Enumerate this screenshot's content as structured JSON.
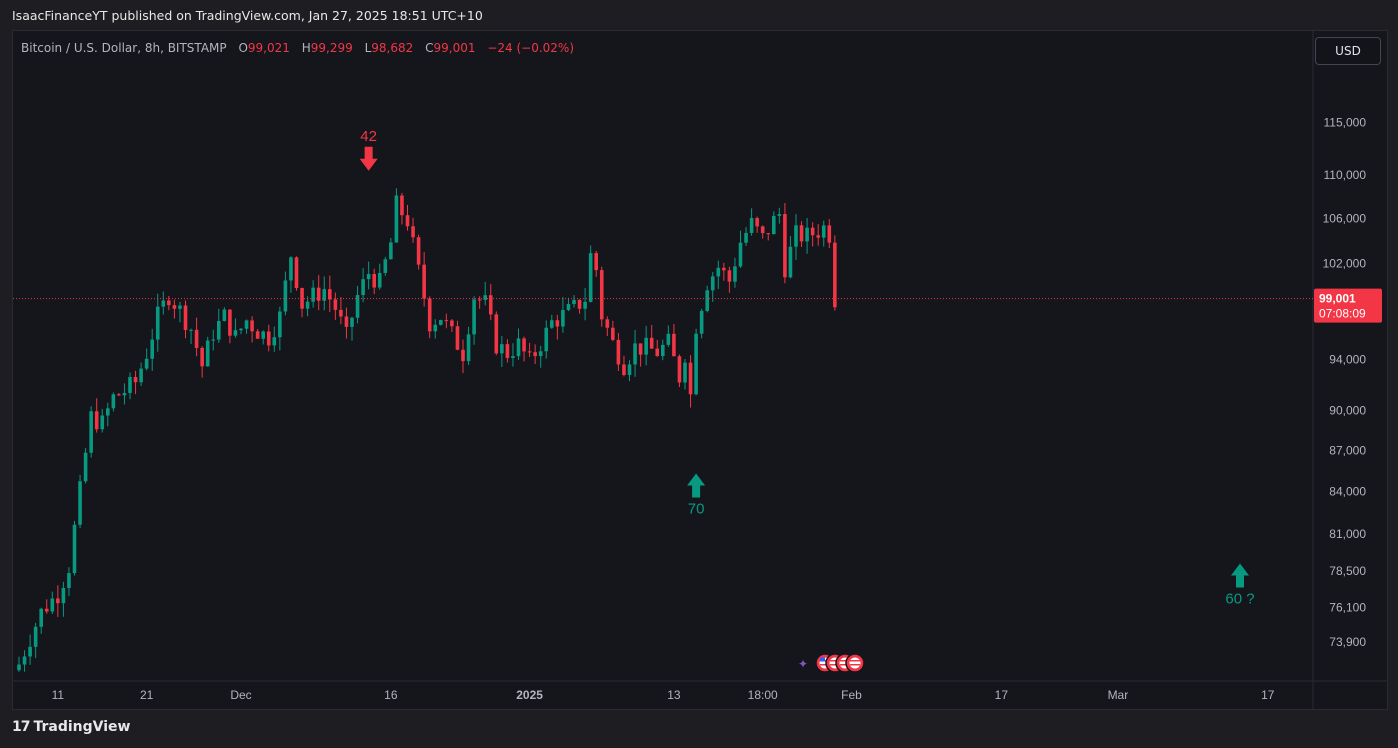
{
  "header": {
    "published_by": "IsaacFinanceYT published on TradingView.com, Jan 27, 2025 18:51 UTC+10"
  },
  "symbol": {
    "name": "Bitcoin / U.S. Dollar, 8h, BITSTAMP",
    "o_label": "O",
    "o": "99,021",
    "h_label": "H",
    "h": "99,299",
    "l_label": "L",
    "l": "98,682",
    "c_label": "C",
    "c": "99,001",
    "change": "−24 (−0.02%)"
  },
  "currency_button": "USD",
  "price_tag": {
    "price": "99,001",
    "countdown": "07:08:09"
  },
  "annotations": [
    {
      "label": "42",
      "direction": "down",
      "color": "#f23645",
      "x_index": 63,
      "price": 110200
    },
    {
      "label": "70",
      "direction": "up",
      "color": "#089981",
      "x_index": 122,
      "price": 85300
    },
    {
      "label": "60 ?",
      "direction": "up",
      "color": "#089981",
      "x_index": 220,
      "price": 79000
    }
  ],
  "footer": {
    "logo": "17",
    "brand": "TradingView"
  },
  "colors": {
    "up": "#089981",
    "down": "#f23645",
    "background": "#15161c",
    "price_line": "#f23645"
  },
  "chart_data": {
    "type": "candlestick",
    "title": "Bitcoin / U.S. Dollar, 8h, BITSTAMP",
    "y_axis_labels": [
      "115,000",
      "110,000",
      "106,000",
      "102,000",
      "94,000",
      "90,000",
      "87,000",
      "84,000",
      "81,000",
      "78,500",
      "76,100",
      "73,900"
    ],
    "x_axis_labels": [
      {
        "label": "11",
        "index": 7
      },
      {
        "label": "21",
        "index": 23
      },
      {
        "label": "Dec",
        "index": 40
      },
      {
        "label": "16",
        "index": 67
      },
      {
        "label": "2025",
        "index": 92
      },
      {
        "label": "13",
        "index": 118
      },
      {
        "label": "18:00",
        "index": 134
      },
      {
        "label": "Feb",
        "index": 150
      },
      {
        "label": "17",
        "index": 177
      },
      {
        "label": "Mar",
        "index": 198
      },
      {
        "label": "17",
        "index": 225
      }
    ],
    "last_price": 99001,
    "log_scale": true,
    "candles_visible": 145,
    "close_path": [
      [
        0,
        72500
      ],
      [
        4,
        75800
      ],
      [
        7,
        77000
      ],
      [
        9,
        78800
      ],
      [
        11,
        84000
      ],
      [
        13,
        89500
      ],
      [
        15,
        89000
      ],
      [
        17,
        91000
      ],
      [
        19,
        91500
      ],
      [
        21,
        92200
      ],
      [
        23,
        94500
      ],
      [
        25,
        97500
      ],
      [
        27,
        99300
      ],
      [
        29,
        98000
      ],
      [
        31,
        96500
      ],
      [
        33,
        93500
      ],
      [
        35,
        96200
      ],
      [
        37,
        97500
      ],
      [
        39,
        95800
      ],
      [
        41,
        97200
      ],
      [
        43,
        96300
      ],
      [
        45,
        95800
      ],
      [
        47,
        97500
      ],
      [
        49,
        102800
      ],
      [
        51,
        98500
      ],
      [
        53,
        99200
      ],
      [
        55,
        99800
      ],
      [
        57,
        98200
      ],
      [
        59,
        95800
      ],
      [
        61,
        99200
      ],
      [
        63,
        101200
      ],
      [
        65,
        100300
      ],
      [
        67,
        103800
      ],
      [
        68,
        107200
      ],
      [
        69,
        106500
      ],
      [
        70,
        105800
      ],
      [
        72,
        101300
      ],
      [
        74,
        97000
      ],
      [
        76,
        97500
      ],
      [
        78,
        96000
      ],
      [
        80,
        94500
      ],
      [
        82,
        99200
      ],
      [
        84,
        98600
      ],
      [
        86,
        95200
      ],
      [
        88,
        94500
      ],
      [
        90,
        95200
      ],
      [
        92,
        93800
      ],
      [
        94,
        95300
      ],
      [
        96,
        97000
      ],
      [
        98,
        97600
      ],
      [
        100,
        98200
      ],
      [
        102,
        99000
      ],
      [
        103,
        102700
      ],
      [
        104,
        101500
      ],
      [
        105,
        97600
      ],
      [
        107,
        95300
      ],
      [
        109,
        93600
      ],
      [
        111,
        95000
      ],
      [
        113,
        94900
      ],
      [
        115,
        94600
      ],
      [
        117,
        95300
      ],
      [
        119,
        92600
      ],
      [
        120,
        94500
      ],
      [
        121,
        91200
      ],
      [
        122,
        96800
      ],
      [
        124,
        100400
      ],
      [
        126,
        101700
      ],
      [
        128,
        100500
      ],
      [
        130,
        103900
      ],
      [
        132,
        105500
      ],
      [
        134,
        104200
      ],
      [
        136,
        105800
      ],
      [
        137,
        106400
      ],
      [
        138,
        101700
      ],
      [
        140,
        104500
      ],
      [
        142,
        104400
      ],
      [
        144,
        104900
      ],
      [
        145,
        105200
      ],
      [
        146,
        104600
      ],
      [
        147,
        99001
      ]
    ]
  }
}
